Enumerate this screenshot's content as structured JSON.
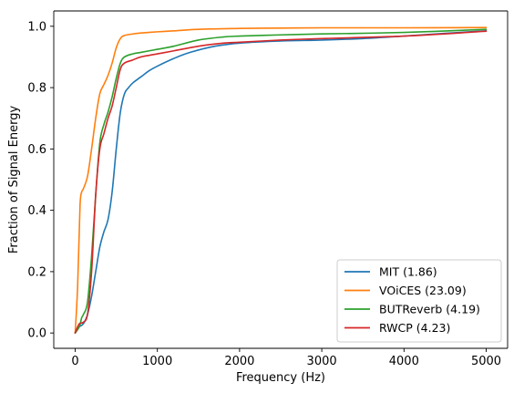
{
  "chart_data": {
    "type": "line",
    "xlabel": "Frequency (Hz)",
    "ylabel": "Fraction of Signal Energy",
    "xlim": [
      -260,
      5260
    ],
    "ylim": [
      -0.05,
      1.05
    ],
    "xticks": [
      0,
      1000,
      2000,
      3000,
      4000,
      5000
    ],
    "xtick_labels": [
      "0",
      "1000",
      "2000",
      "3000",
      "4000",
      "5000"
    ],
    "yticks": [
      0.0,
      0.2,
      0.4,
      0.6,
      0.8,
      1.0
    ],
    "ytick_labels": [
      "0.0",
      "0.2",
      "0.4",
      "0.6",
      "0.8",
      "1.0"
    ],
    "grid": false,
    "legend_position": "lower-right",
    "series": [
      {
        "name": "MIT (1.86)",
        "color": "#1f77b4",
        "x": [
          0,
          50,
          100,
          150,
          200,
          250,
          300,
          350,
          400,
          450,
          500,
          550,
          600,
          650,
          700,
          800,
          900,
          1000,
          1200,
          1400,
          1700,
          2000,
          2500,
          3000,
          3500,
          4000,
          4500,
          5000
        ],
        "y": [
          0.0,
          0.02,
          0.03,
          0.06,
          0.12,
          0.2,
          0.28,
          0.33,
          0.37,
          0.46,
          0.6,
          0.72,
          0.78,
          0.8,
          0.815,
          0.835,
          0.855,
          0.87,
          0.895,
          0.915,
          0.935,
          0.945,
          0.952,
          0.955,
          0.96,
          0.968,
          0.977,
          0.985
        ]
      },
      {
        "name": "VOiCES (23.09)",
        "color": "#ff7f0e",
        "x": [
          0,
          30,
          60,
          80,
          100,
          150,
          200,
          250,
          300,
          350,
          400,
          450,
          500,
          550,
          600,
          700,
          800,
          1000,
          1200,
          1500,
          2000,
          2500,
          3000,
          4000,
          5000
        ],
        "y": [
          0.0,
          0.15,
          0.42,
          0.46,
          0.47,
          0.51,
          0.6,
          0.7,
          0.78,
          0.81,
          0.84,
          0.88,
          0.93,
          0.96,
          0.97,
          0.975,
          0.978,
          0.982,
          0.985,
          0.99,
          0.993,
          0.994,
          0.995,
          0.995,
          0.996
        ]
      },
      {
        "name": "BUTReverb (4.19)",
        "color": "#2ca02c",
        "x": [
          0,
          50,
          80,
          100,
          150,
          200,
          250,
          300,
          350,
          400,
          450,
          500,
          550,
          600,
          700,
          800,
          1000,
          1200,
          1500,
          1800,
          2000,
          2500,
          3000,
          4000,
          5000
        ],
        "y": [
          0.0,
          0.02,
          0.05,
          0.06,
          0.1,
          0.25,
          0.45,
          0.62,
          0.68,
          0.72,
          0.77,
          0.83,
          0.88,
          0.9,
          0.91,
          0.915,
          0.925,
          0.935,
          0.955,
          0.965,
          0.968,
          0.972,
          0.975,
          0.98,
          0.99
        ]
      },
      {
        "name": "RWCP (4.23)",
        "color": "#d62728",
        "x": [
          0,
          50,
          100,
          150,
          200,
          250,
          300,
          350,
          400,
          450,
          500,
          550,
          600,
          700,
          800,
          1000,
          1200,
          1500,
          1800,
          2000,
          2500,
          3000,
          4000,
          5000
        ],
        "y": [
          0.0,
          0.03,
          0.035,
          0.06,
          0.2,
          0.45,
          0.6,
          0.65,
          0.7,
          0.74,
          0.8,
          0.86,
          0.88,
          0.89,
          0.9,
          0.91,
          0.92,
          0.935,
          0.945,
          0.948,
          0.955,
          0.96,
          0.968,
          0.984
        ]
      }
    ]
  }
}
